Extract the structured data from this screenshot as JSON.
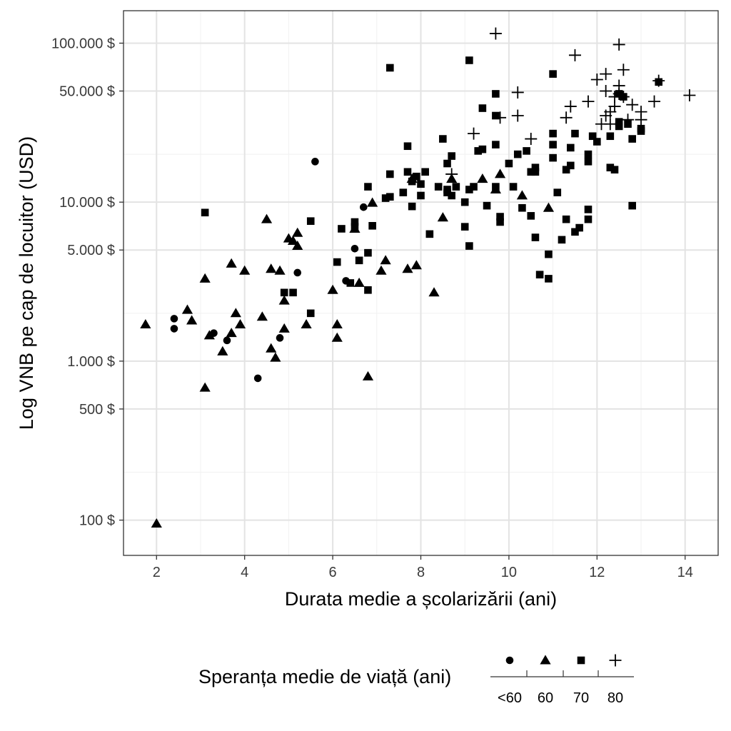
{
  "chart_data": {
    "type": "scatter",
    "xlabel": "Durata medie a școlarizării (ani)",
    "ylabel": "Log VNB pe cap de locuitor (USD)",
    "x_scale": "linear",
    "y_scale": "log",
    "xlim": [
      1.25,
      14.75
    ],
    "ylim": [
      60,
      160000
    ],
    "x_ticks": [
      2,
      4,
      6,
      8,
      10,
      12,
      14
    ],
    "x_tick_labels": [
      "2",
      "4",
      "6",
      "8",
      "10",
      "12",
      "14"
    ],
    "y_ticks": [
      100,
      500,
      1000,
      5000,
      10000,
      50000,
      100000
    ],
    "y_tick_labels": [
      "100 $",
      "500 $",
      "1.000 $",
      "5.000 $",
      "10.000 $",
      "50.000 $",
      "100.000 $"
    ],
    "y_minor_grid": [
      200,
      2000,
      20000
    ],
    "grid": true,
    "legend": {
      "title": "Speranța medie de viață (ani)",
      "placement": "bottom",
      "labels": [
        "<60",
        "60",
        "70",
        "80"
      ]
    },
    "series": [
      {
        "name": "<60",
        "marker": "circle",
        "points": [
          [
            2.4,
            1850
          ],
          [
            2.4,
            1600
          ],
          [
            3.3,
            1500
          ],
          [
            3.6,
            1350
          ],
          [
            4.3,
            780
          ],
          [
            4.8,
            1400
          ],
          [
            5.2,
            3600
          ],
          [
            5.6,
            18000
          ],
          [
            6.3,
            3200
          ],
          [
            6.5,
            5100
          ],
          [
            6.7,
            9300
          ]
        ]
      },
      {
        "name": "60",
        "marker": "triangle",
        "points": [
          [
            1.75,
            1700
          ],
          [
            2.0,
            95
          ],
          [
            2.7,
            2100
          ],
          [
            2.8,
            1800
          ],
          [
            3.1,
            3300
          ],
          [
            3.1,
            680
          ],
          [
            3.2,
            1450
          ],
          [
            3.5,
            1150
          ],
          [
            3.7,
            4100
          ],
          [
            3.7,
            1500
          ],
          [
            3.8,
            2000
          ],
          [
            3.9,
            1700
          ],
          [
            4.0,
            3700
          ],
          [
            4.4,
            1900
          ],
          [
            4.5,
            7800
          ],
          [
            4.6,
            3800
          ],
          [
            4.6,
            1200
          ],
          [
            4.7,
            1050
          ],
          [
            4.8,
            3700
          ],
          [
            4.9,
            2400
          ],
          [
            4.9,
            1600
          ],
          [
            5.0,
            5900
          ],
          [
            5.1,
            5700
          ],
          [
            5.2,
            6400
          ],
          [
            5.2,
            5300
          ],
          [
            5.4,
            1700
          ],
          [
            6.0,
            2800
          ],
          [
            6.1,
            1700
          ],
          [
            6.1,
            1400
          ],
          [
            6.5,
            6800
          ],
          [
            6.6,
            3100
          ],
          [
            6.8,
            800
          ],
          [
            6.9,
            9900
          ],
          [
            7.1,
            3700
          ],
          [
            7.2,
            4300
          ],
          [
            7.7,
            3800
          ],
          [
            7.8,
            14000
          ],
          [
            7.9,
            4000
          ],
          [
            8.3,
            2700
          ],
          [
            8.5,
            8000
          ],
          [
            8.7,
            14000
          ],
          [
            9.4,
            14000
          ],
          [
            9.7,
            12000
          ],
          [
            9.8,
            15000
          ],
          [
            10.3,
            11000
          ],
          [
            10.9,
            9200
          ]
        ]
      },
      {
        "name": "70",
        "marker": "square",
        "points": [
          [
            3.1,
            8600
          ],
          [
            4.9,
            2700
          ],
          [
            5.1,
            2700
          ],
          [
            5.5,
            7600
          ],
          [
            5.5,
            2000
          ],
          [
            6.1,
            4200
          ],
          [
            6.2,
            6800
          ],
          [
            6.4,
            3100
          ],
          [
            6.5,
            7500
          ],
          [
            6.5,
            7000
          ],
          [
            6.6,
            4300
          ],
          [
            6.8,
            12500
          ],
          [
            6.8,
            4800
          ],
          [
            6.8,
            2800
          ],
          [
            6.9,
            7100
          ],
          [
            7.2,
            10600
          ],
          [
            7.3,
            10800
          ],
          [
            7.3,
            70000
          ],
          [
            7.3,
            15000
          ],
          [
            7.6,
            11500
          ],
          [
            7.7,
            22500
          ],
          [
            7.7,
            15500
          ],
          [
            7.8,
            9400
          ],
          [
            7.8,
            13500
          ],
          [
            7.9,
            14500
          ],
          [
            8.0,
            11000
          ],
          [
            8.0,
            13000
          ],
          [
            8.1,
            15500
          ],
          [
            8.2,
            6300
          ],
          [
            8.4,
            12500
          ],
          [
            8.5,
            25000
          ],
          [
            8.6,
            17500
          ],
          [
            8.6,
            11500
          ],
          [
            8.6,
            12000
          ],
          [
            8.7,
            19500
          ],
          [
            8.7,
            11000
          ],
          [
            8.8,
            12500
          ],
          [
            9.0,
            7000
          ],
          [
            9.0,
            10000
          ],
          [
            9.1,
            12000
          ],
          [
            9.1,
            5300
          ],
          [
            9.1,
            78000
          ],
          [
            9.2,
            12500
          ],
          [
            9.3,
            21000
          ],
          [
            9.4,
            39000
          ],
          [
            9.4,
            21500
          ],
          [
            9.5,
            9500
          ],
          [
            9.7,
            48000
          ],
          [
            9.7,
            35000
          ],
          [
            9.7,
            23000
          ],
          [
            9.7,
            12500
          ],
          [
            9.8,
            8100
          ],
          [
            9.8,
            7500
          ],
          [
            10.0,
            17500
          ],
          [
            10.1,
            12500
          ],
          [
            10.2,
            20000
          ],
          [
            10.3,
            9200
          ],
          [
            10.4,
            21000
          ],
          [
            10.5,
            15500
          ],
          [
            10.5,
            8200
          ],
          [
            10.6,
            16500
          ],
          [
            10.6,
            15500
          ],
          [
            10.6,
            6000
          ],
          [
            10.7,
            3500
          ],
          [
            10.9,
            3300
          ],
          [
            10.9,
            4700
          ],
          [
            11.0,
            64000
          ],
          [
            11.0,
            27000
          ],
          [
            11.0,
            23000
          ],
          [
            11.0,
            19000
          ],
          [
            11.1,
            11500
          ],
          [
            11.2,
            5800
          ],
          [
            11.3,
            16000
          ],
          [
            11.3,
            7800
          ],
          [
            11.4,
            17000
          ],
          [
            11.4,
            22000
          ],
          [
            11.5,
            27000
          ],
          [
            11.5,
            6500
          ],
          [
            11.6,
            6900
          ],
          [
            11.8,
            9000
          ],
          [
            11.8,
            7800
          ],
          [
            11.8,
            20000
          ],
          [
            11.8,
            18000
          ],
          [
            11.9,
            26000
          ],
          [
            12.0,
            24000
          ],
          [
            12.3,
            16500
          ],
          [
            12.3,
            26000
          ],
          [
            12.4,
            16000
          ],
          [
            12.5,
            32000
          ],
          [
            12.5,
            30000
          ],
          [
            12.5,
            48000
          ],
          [
            12.6,
            46000
          ],
          [
            12.7,
            31000
          ],
          [
            12.8,
            25000
          ],
          [
            12.8,
            9500
          ],
          [
            13.0,
            28000
          ],
          [
            13.0,
            29000
          ],
          [
            13.4,
            57000
          ]
        ]
      },
      {
        "name": "80",
        "marker": "plus",
        "points": [
          [
            8.7,
            15000
          ],
          [
            9.2,
            27000
          ],
          [
            9.7,
            115000
          ],
          [
            9.8,
            34000
          ],
          [
            10.2,
            49000
          ],
          [
            10.2,
            35000
          ],
          [
            10.5,
            25000
          ],
          [
            11.3,
            34000
          ],
          [
            11.4,
            40000
          ],
          [
            11.5,
            84000
          ],
          [
            11.8,
            43000
          ],
          [
            12.0,
            59000
          ],
          [
            12.1,
            31000
          ],
          [
            12.2,
            64000
          ],
          [
            12.2,
            50000
          ],
          [
            12.2,
            35000
          ],
          [
            12.3,
            37000
          ],
          [
            12.3,
            31000
          ],
          [
            12.4,
            40000
          ],
          [
            12.4,
            46000
          ],
          [
            12.5,
            98000
          ],
          [
            12.5,
            54000
          ],
          [
            12.5,
            48000
          ],
          [
            12.6,
            68000
          ],
          [
            12.6,
            46000
          ],
          [
            12.7,
            33000
          ],
          [
            12.8,
            41000
          ],
          [
            13.0,
            37000
          ],
          [
            13.0,
            33000
          ],
          [
            13.3,
            43000
          ],
          [
            13.4,
            58000
          ],
          [
            14.1,
            47000
          ]
        ]
      }
    ]
  }
}
